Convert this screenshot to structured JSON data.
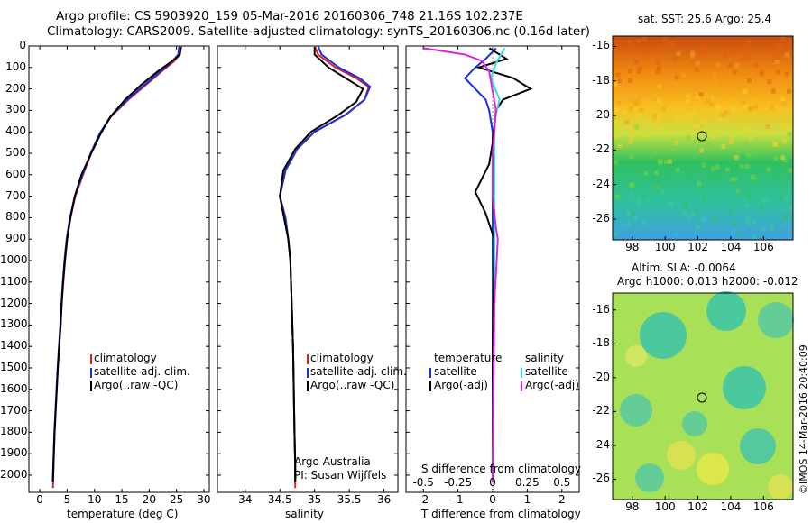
{
  "title_line1": "Argo profile: CS 5903920_159 05-Mar-2016 20160306_748 21.16S 102.237E",
  "title_line2": "Climatology: CARS2009. Satellite-adjusted climatology: synTS_20160306.nc (0.16d later)",
  "credit": "©IMOS 14-Mar-2016 20:40:09",
  "institution_line1": "Argo Australia",
  "institution_line2": "PI: Susan Wijffels",
  "colors": {
    "climatology": "#e02020",
    "satellite": "#1a2ee0",
    "argo": "#000000",
    "s_satellite": "#30e0e0",
    "s_argo": "#e020e0"
  },
  "chart_data": [
    {
      "type": "line",
      "panel": "temperature",
      "xlabel": "temperature (deg C)",
      "xlim": [
        -2,
        31
      ],
      "ylim": [
        2080,
        0
      ],
      "xticks": [
        "0",
        "5",
        "10",
        "15",
        "20",
        "25",
        "30"
      ],
      "yticks": [
        "0",
        "100",
        "200",
        "300",
        "400",
        "500",
        "600",
        "700",
        "800",
        "900",
        "1000",
        "1100",
        "1200",
        "1300",
        "1400",
        "1500",
        "1600",
        "1700",
        "1800",
        "1900",
        "2000"
      ],
      "legend": [
        "climatology",
        "satellite-adj. clim.",
        "Argo(..raw -QC)"
      ],
      "series": [
        {
          "name": "climatology",
          "x": [
            25.9,
            25.6,
            24.6,
            22.2,
            19.5,
            16.2,
            13.0,
            11.0,
            9.4,
            7.9,
            6.5,
            5.6,
            5.0,
            4.6,
            4.3,
            4.0,
            3.8,
            3.55,
            3.3,
            3.1,
            2.9,
            2.7,
            2.5,
            2.4
          ],
          "y": [
            0,
            40,
            70,
            120,
            180,
            250,
            330,
            410,
            500,
            600,
            700,
            800,
            900,
            1000,
            1100,
            1200,
            1300,
            1400,
            1500,
            1600,
            1700,
            1800,
            1950,
            2060
          ]
        },
        {
          "name": "satellite-adj. clim.",
          "x": [
            25.5,
            25.3,
            24.3,
            22.0,
            19.2,
            16.0,
            12.9,
            10.9,
            9.3,
            7.8,
            6.4,
            5.5,
            4.9,
            4.5,
            4.2,
            3.95,
            3.75,
            3.5,
            3.25,
            3.05,
            2.85,
            2.65,
            2.45,
            2.35
          ],
          "y": [
            0,
            40,
            70,
            120,
            180,
            250,
            330,
            410,
            500,
            600,
            700,
            800,
            900,
            1000,
            1100,
            1200,
            1300,
            1400,
            1500,
            1600,
            1700,
            1800,
            1950,
            2030
          ]
        },
        {
          "name": "Argo(..raw -QC)",
          "x": [
            25.8,
            25.6,
            24.2,
            21.5,
            18.6,
            15.6,
            12.9,
            11.1,
            9.4,
            7.6,
            6.4,
            5.6,
            5.0,
            4.6,
            4.25,
            4.0,
            3.8,
            3.55,
            3.3,
            3.1,
            2.9,
            2.7,
            2.5,
            2.4
          ],
          "y": [
            5,
            40,
            70,
            120,
            180,
            250,
            330,
            410,
            500,
            600,
            700,
            800,
            900,
            1000,
            1100,
            1200,
            1300,
            1400,
            1500,
            1600,
            1700,
            1800,
            1950,
            2030
          ]
        }
      ]
    },
    {
      "type": "line",
      "panel": "salinity",
      "xlabel": "salinity",
      "xlim": [
        33.6,
        36.2
      ],
      "ylim": [
        2080,
        0
      ],
      "xticks": [
        "34",
        "34.5",
        "35",
        "35.5",
        "36"
      ],
      "legend": [
        "climatology",
        "satellite-adj. clim.",
        "Argo(..raw -QC)"
      ],
      "series": [
        {
          "name": "climatology",
          "x": [
            35.0,
            35.05,
            35.3,
            35.6,
            35.78,
            35.72,
            35.45,
            35.0,
            34.75,
            34.58,
            34.5,
            34.58,
            34.62,
            34.65,
            34.67,
            34.69,
            34.7,
            34.71,
            34.72,
            34.72
          ],
          "y": [
            0,
            40,
            100,
            150,
            190,
            250,
            320,
            400,
            480,
            580,
            700,
            800,
            900,
            1000,
            1200,
            1400,
            1600,
            1800,
            1950,
            2060
          ]
        },
        {
          "name": "satellite-adj. clim.",
          "x": [
            35.05,
            35.1,
            35.35,
            35.65,
            35.8,
            35.72,
            35.45,
            35.0,
            34.75,
            34.58,
            34.5,
            34.58,
            34.62,
            34.65,
            34.67,
            34.69,
            34.7,
            34.71,
            34.72,
            34.72
          ],
          "y": [
            0,
            40,
            100,
            150,
            190,
            250,
            320,
            400,
            480,
            580,
            700,
            800,
            900,
            1000,
            1200,
            1400,
            1600,
            1800,
            1950,
            2030
          ]
        },
        {
          "name": "Argo(..raw -QC)",
          "x": [
            35.0,
            35.0,
            35.2,
            35.55,
            35.7,
            35.6,
            35.35,
            34.95,
            34.72,
            34.55,
            34.5,
            34.56,
            34.62,
            34.65,
            34.67,
            34.69,
            34.7,
            34.71,
            34.72,
            34.72
          ],
          "y": [
            5,
            40,
            100,
            170,
            200,
            260,
            320,
            400,
            480,
            580,
            700,
            800,
            900,
            1000,
            1200,
            1400,
            1600,
            1800,
            1950,
            2030
          ]
        }
      ]
    },
    {
      "type": "line",
      "panel": "difference",
      "xlabel": "T difference from climatology",
      "xlabel_top": "S difference from climatology",
      "xlim": [
        -2.5,
        2.5
      ],
      "ylim": [
        2080,
        0
      ],
      "xticks": [
        "-2",
        "-1",
        "0",
        "1",
        "2"
      ],
      "xticks_top": [
        "-0.5",
        "-0.25",
        "0",
        "0.25",
        "0.5"
      ],
      "legend": [
        "temperature",
        "satellite",
        "Argo(-adj)",
        "salinity",
        "satellite",
        "Argo(-adj)"
      ],
      "series": [
        {
          "name": "satellite",
          "x": [
            0.1,
            -0.2,
            -0.5,
            -0.8,
            -0.5,
            -0.2,
            -0.1,
            0.0,
            0.0,
            0.0,
            0.0,
            0.0,
            0.0
          ],
          "y": [
            10,
            60,
            100,
            150,
            200,
            250,
            300,
            400,
            600,
            800,
            1200,
            1600,
            2030
          ]
        },
        {
          "name": "Argo(-adj)",
          "x": [
            -0.1,
            0.4,
            -0.4,
            0.6,
            1.1,
            0.3,
            0.1,
            0.0,
            -0.1,
            -0.5,
            -0.2,
            0.05,
            0.0,
            0.0
          ],
          "y": [
            10,
            60,
            100,
            150,
            200,
            250,
            300,
            450,
            550,
            680,
            780,
            900,
            1400,
            2030
          ]
        },
        {
          "name": "satellite",
          "x": [
            0.35,
            0.1,
            -0.05,
            0.2,
            0.05,
            0.05,
            0.05,
            0.05,
            0.05,
            0.02,
            0.0
          ],
          "y": [
            10,
            80,
            150,
            250,
            350,
            500,
            700,
            900,
            1200,
            1600,
            2030
          ]
        },
        {
          "name": "Argo(-adj)",
          "x": [
            -2.0,
            -0.8,
            -0.3,
            -0.1,
            0.1,
            0.0,
            0.0,
            0.1,
            0.15,
            0.05,
            0.0
          ],
          "y": [
            10,
            40,
            70,
            120,
            300,
            500,
            700,
            850,
            900,
            1200,
            2030
          ]
        }
      ]
    }
  ],
  "maps": [
    {
      "title": "sat. SST: 25.6  Argo: 25.4",
      "xticks": [
        "98",
        "100",
        "102",
        "104",
        "106"
      ],
      "yticks": [
        "-16",
        "-18",
        "-20",
        "-22",
        "-24",
        "-26"
      ]
    },
    {
      "title_line1": "Altim. SLA: -0.0064",
      "title_line2": "Argo h1000: 0.013 h2000: -0.012",
      "xticks": [
        "98",
        "100",
        "102",
        "104",
        "106"
      ],
      "yticks": [
        "-16",
        "-18",
        "-20",
        "-22",
        "-24",
        "-26"
      ]
    }
  ]
}
